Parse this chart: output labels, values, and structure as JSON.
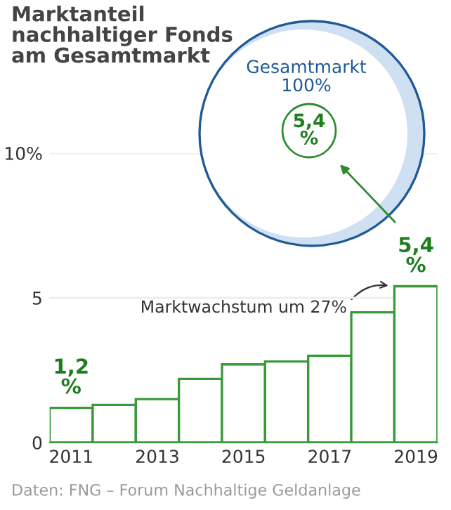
{
  "chart_data": {
    "type": "bar",
    "title": "Marktanteil\nnachhaltiger Fonds\nam Gesamtmarkt",
    "categories": [
      "2011",
      null,
      "2013",
      null,
      "2015",
      null,
      "2017",
      null,
      "2019"
    ],
    "values": [
      1.2,
      1.3,
      1.5,
      2.2,
      2.7,
      2.8,
      3.0,
      4.5,
      5.4
    ],
    "color": "#3a9a3a",
    "value_labels": [
      "1,2\n%",
      null,
      null,
      null,
      null,
      null,
      null,
      null,
      "5,4\n%"
    ],
    "ylim": [
      0,
      10
    ],
    "yticks": [
      0,
      5,
      {
        "value": 10,
        "label": "10%"
      }
    ],
    "grid": "y",
    "annotations": [
      "Gesamtmarkt\n100%",
      "5,4\n%",
      "Marktwachstum um 27%",
      "Daten: FNG – Forum Nachhaltige Geldanlage"
    ]
  }
}
